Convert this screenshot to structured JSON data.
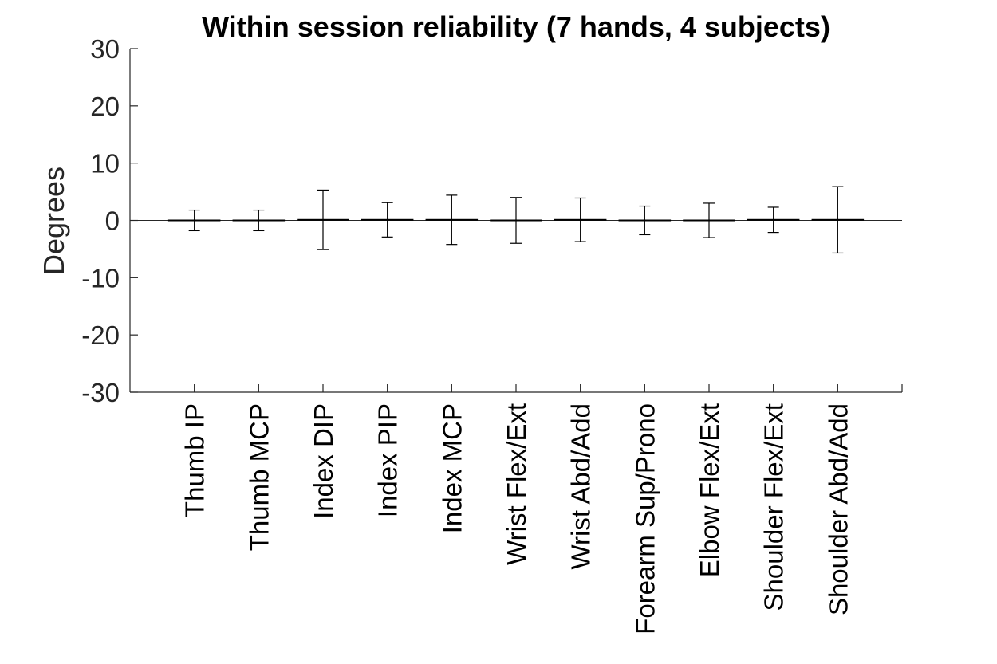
{
  "chart_data": {
    "type": "bar",
    "title": "Within session reliability (7 hands, 4 subjects)",
    "xlabel": "",
    "ylabel": "Degrees",
    "ylim": [
      -30,
      30
    ],
    "yticks": [
      30,
      20,
      10,
      0,
      -10,
      -20,
      -30
    ],
    "grid": false,
    "categories": [
      "Thumb IP",
      "Thumb MCP",
      "Index DIP",
      "Index PIP",
      "Index MCP",
      "Wrist Flex/Ext",
      "Wrist Abd/Add",
      "Forearm Sup/Prono",
      "Elbow Flex/Ext",
      "Shoulder Flex/Ext",
      "Shoulder Abd/Add"
    ],
    "values": [
      0,
      0,
      0.1,
      0.1,
      0.1,
      0,
      0.1,
      0,
      0,
      0.1,
      0.1
    ],
    "error": [
      1.8,
      1.8,
      5.2,
      3.0,
      4.3,
      4.0,
      3.8,
      2.5,
      3.0,
      2.2,
      5.8
    ],
    "colors": {
      "axis": "#262626",
      "bar": "#000000",
      "errorbar": "#000000",
      "background": "#ffffff"
    }
  }
}
